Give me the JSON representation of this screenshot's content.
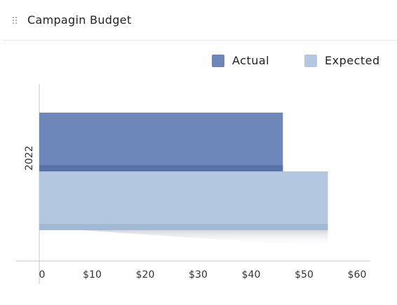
{
  "widget": {
    "title": "Campagin Budget",
    "drag_icon": "drag-handle-icon"
  },
  "colors": {
    "actual": "#6e87ba",
    "actual_edge": "#5a72a8",
    "expected": "#b3c8e0",
    "expected_edge": "#a2b8d3",
    "axis": "#c8c8c8",
    "text": "#222222"
  },
  "chart_data": {
    "type": "bar",
    "orientation": "horizontal",
    "title": "",
    "categories": [
      "2022"
    ],
    "series": [
      {
        "name": "Actual",
        "values": [
          46
        ]
      },
      {
        "name": "Expected",
        "values": [
          54.5
        ]
      }
    ],
    "x_ticks": [
      "0",
      "$10",
      "$20",
      "$30",
      "$40",
      "$50",
      "$60"
    ],
    "xlim": [
      0,
      60
    ],
    "grid": false,
    "legend_position": "top-right"
  }
}
